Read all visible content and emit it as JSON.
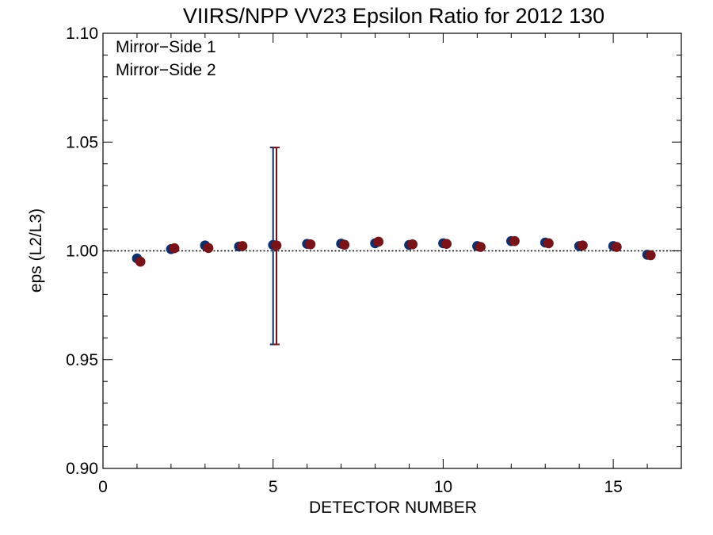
{
  "chart_data": {
    "type": "scatter",
    "title": "VIIRS/NPP VV23 Epsilon Ratio for 2012 130",
    "xlabel": "DETECTOR NUMBER",
    "ylabel": "eps (L2/L3)",
    "xlim": [
      0,
      17
    ],
    "ylim": [
      0.9,
      1.1
    ],
    "x_ticks": [
      0,
      5,
      10,
      15
    ],
    "x_tick_labels": [
      "0",
      "5",
      "10",
      "15"
    ],
    "y_ticks": [
      0.9,
      0.95,
      1.0,
      1.05,
      1.1
    ],
    "y_tick_labels": [
      "0.90",
      "0.95",
      "1.00",
      "1.05",
      "1.10"
    ],
    "reference_line": 1.0,
    "legend_position": "top-left",
    "series": [
      {
        "name": "Mirror−Side 1",
        "color": "#0d2f6b",
        "x": [
          1,
          2,
          3,
          4,
          5,
          6,
          7,
          8,
          9,
          10,
          11,
          12,
          13,
          14,
          15,
          16
        ],
        "y": [
          0.9965,
          1.0008,
          1.0025,
          1.002,
          1.0027,
          1.0032,
          1.0033,
          1.0035,
          1.0027,
          1.0035,
          1.0022,
          1.0045,
          1.0038,
          1.0022,
          1.0022,
          0.9982
        ],
        "error_bars": [
          {
            "x": 5,
            "low": 0.957,
            "high": 1.0475
          }
        ]
      },
      {
        "name": "Mirror−Side 2",
        "color": "#7a1218",
        "x": [
          1,
          2,
          3,
          4,
          5,
          6,
          7,
          8,
          9,
          10,
          11,
          12,
          13,
          14,
          15,
          16
        ],
        "y": [
          0.995,
          1.0012,
          1.0013,
          1.0022,
          1.0025,
          1.003,
          1.0028,
          1.0042,
          1.003,
          1.0032,
          1.0018,
          1.0045,
          1.0035,
          1.0025,
          1.0018,
          0.998
        ],
        "error_bars": [
          {
            "x": 5,
            "low": 0.957,
            "high": 1.0475
          }
        ]
      }
    ]
  }
}
